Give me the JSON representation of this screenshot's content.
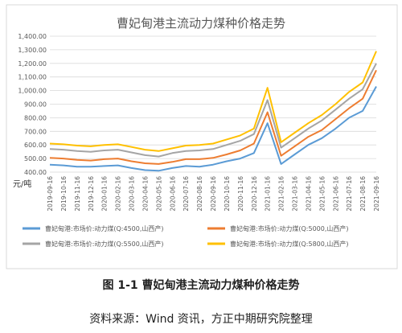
{
  "chart_data": {
    "type": "line",
    "title": "曹妃甸港主流动力煤种价格走势",
    "ylabel": "元/吨",
    "ylim": [
      400,
      1400
    ],
    "yticks": [
      "400.00",
      "500.00",
      "600.00",
      "700.00",
      "800.00",
      "900.00",
      "1,000.00",
      "1,100.00",
      "1,200.00",
      "1,300.00",
      "1,400.00"
    ],
    "ytick_values": [
      400,
      500,
      600,
      700,
      800,
      900,
      1000,
      1100,
      1200,
      1300,
      1400
    ],
    "x": [
      "2019-09-16",
      "2019-10-16",
      "2019-11-16",
      "2019-12-16",
      "2020-01-16",
      "2020-02-16",
      "2020-03-16",
      "2020-04-16",
      "2020-05-16",
      "2020-06-16",
      "2020-07-16",
      "2020-08-16",
      "2020-09-16",
      "2020-10-16",
      "2020-11-16",
      "2020-12-16",
      "2021-01-16",
      "2021-02-16",
      "2021-03-16",
      "2021-04-16",
      "2021-05-16",
      "2021-06-16",
      "2021-07-16",
      "2021-08-16",
      "2021-09-16"
    ],
    "grid": true,
    "legend_position": "bottom",
    "series": [
      {
        "name": "曹妃甸港:市场价:动力煤(Q:4500,山西产)",
        "color": "#5b9bd5",
        "values": [
          455,
          450,
          440,
          440,
          445,
          450,
          430,
          415,
          410,
          430,
          445,
          440,
          455,
          480,
          500,
          540,
          760,
          460,
          530,
          600,
          650,
          720,
          800,
          850,
          1030
        ]
      },
      {
        "name": "曹妃甸港:市场价:动力煤(Q:5000,山西产)",
        "color": "#ed7d31",
        "values": [
          505,
          500,
          490,
          485,
          495,
          500,
          480,
          465,
          460,
          475,
          495,
          495,
          505,
          530,
          560,
          610,
          840,
          520,
          590,
          660,
          710,
          790,
          870,
          940,
          1150
        ]
      },
      {
        "name": "曹妃甸港:市场价:动力煤(Q:5500,山西产)",
        "color": "#a5a5a5",
        "values": [
          570,
          565,
          555,
          550,
          560,
          565,
          545,
          525,
          515,
          540,
          555,
          560,
          570,
          600,
          630,
          680,
          930,
          580,
          650,
          720,
          780,
          860,
          940,
          1010,
          1200
        ]
      },
      {
        "name": "曹妃甸港:市场价:动力煤(Q:5800,山西产)",
        "color": "#ffc000",
        "values": [
          610,
          605,
          595,
          590,
          600,
          605,
          585,
          565,
          555,
          575,
          595,
          600,
          610,
          640,
          670,
          720,
          1020,
          620,
          690,
          760,
          820,
          900,
          990,
          1060,
          1290
        ]
      }
    ]
  },
  "figure_caption": "图 1-1  曹妃甸港主流动力煤种价格走势",
  "source_note": "资料来源：Wind 资讯，方正中期研究院整理"
}
